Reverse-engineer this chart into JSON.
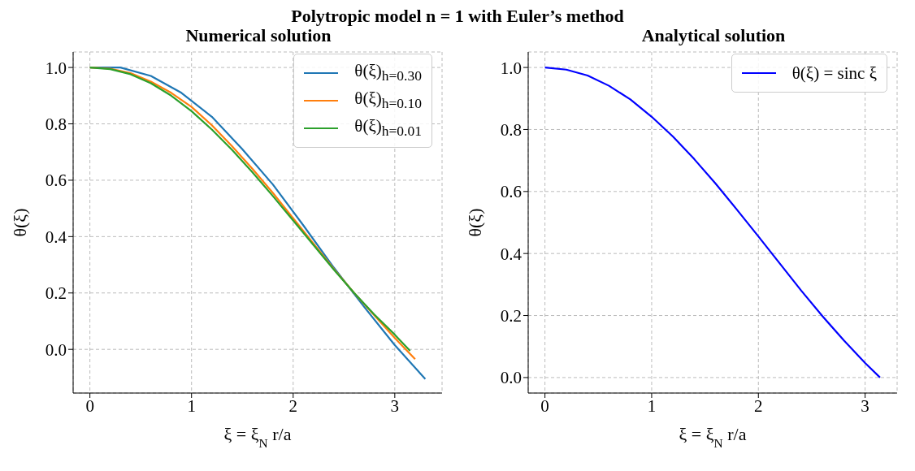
{
  "chart_data": [
    {
      "type": "line",
      "title": "Polytropic model  n = 1  with Euler’s method",
      "subtitle": "Numerical solution",
      "xlabel": "ξ = ξ$_{N}$r/a",
      "ylabel": "θ(ξ)",
      "xlim": [
        -0.165,
        3.465
      ],
      "ylim": [
        -0.155,
        1.055
      ],
      "xticks": [
        0,
        1,
        2,
        3
      ],
      "yticks": [
        {
          "value": 0,
          "label": "0.0"
        },
        {
          "value": 0.2,
          "label": "0.2"
        },
        {
          "value": 0.4,
          "label": "0.4"
        },
        {
          "value": 0.6,
          "label": "0.6"
        },
        {
          "value": 0.8,
          "label": "0.8"
        },
        {
          "value": 1,
          "label": "1.0"
        }
      ],
      "grid": true,
      "legend": "top right",
      "line_style": "solid",
      "series": [
        {
          "name": "θ(ξ)$_{h=0.30}$",
          "color": "#1f77b4",
          "x": [
            0,
            0.3,
            0.6,
            0.9,
            1.2,
            1.5,
            1.8,
            2.1,
            2.4,
            2.7,
            3.0,
            3.3
          ],
          "values": [
            1,
            1,
            0.97,
            0.91,
            0.825,
            0.71,
            0.585,
            0.44,
            0.29,
            0.15,
            0.015,
            -0.105
          ]
        },
        {
          "name": "θ(ξ)$_{h=0.10}$",
          "color": "#ff7f0e",
          "x": [
            0,
            0.2,
            0.4,
            0.6,
            0.8,
            1.0,
            1.2,
            1.4,
            1.6,
            1.8,
            2.0,
            2.2,
            2.4,
            2.6,
            2.8,
            3.0,
            3.2
          ],
          "values": [
            1,
            0.996,
            0.98,
            0.95,
            0.91,
            0.86,
            0.795,
            0.72,
            0.64,
            0.555,
            0.465,
            0.375,
            0.285,
            0.2,
            0.12,
            0.04,
            -0.035
          ]
        },
        {
          "name": "θ(ξ)$_{h=0.01}$",
          "color": "#2ca02c",
          "x": [
            0,
            0.2,
            0.4,
            0.6,
            0.8,
            1.0,
            1.2,
            1.4,
            1.6,
            1.8,
            2.0,
            2.2,
            2.4,
            2.6,
            2.8,
            3.0,
            3.15
          ],
          "values": [
            1,
            0.994,
            0.976,
            0.944,
            0.9,
            0.845,
            0.78,
            0.707,
            0.628,
            0.544,
            0.457,
            0.37,
            0.283,
            0.2,
            0.123,
            0.052,
            -0.005
          ]
        }
      ]
    },
    {
      "type": "line",
      "subtitle": "Analytical solution",
      "xlabel": "ξ = ξ$_{N}$r/a",
      "ylabel": "θ(ξ)",
      "xlim": [
        -0.157,
        3.3
      ],
      "ylim": [
        -0.05,
        1.05
      ],
      "xticks": [
        0,
        1,
        2,
        3
      ],
      "yticks": [
        {
          "value": 0,
          "label": "0.0"
        },
        {
          "value": 0.2,
          "label": "0.2"
        },
        {
          "value": 0.4,
          "label": "0.4"
        },
        {
          "value": 0.6,
          "label": "0.6"
        },
        {
          "value": 0.8,
          "label": "0.8"
        },
        {
          "value": 1,
          "label": "1.0"
        }
      ],
      "grid": true,
      "legend": "top right",
      "line_style": "solid",
      "series": [
        {
          "name": "θ(ξ) = sinc ξ",
          "color": "#0000ff",
          "x": [
            0,
            0.2,
            0.4,
            0.6,
            0.8,
            1.0,
            1.2,
            1.4,
            1.6,
            1.8,
            2.0,
            2.2,
            2.4,
            2.6,
            2.8,
            3.0,
            3.14
          ],
          "values": [
            1,
            0.993,
            0.974,
            0.941,
            0.897,
            0.841,
            0.777,
            0.704,
            0.625,
            0.541,
            0.455,
            0.368,
            0.281,
            0.198,
            0.12,
            0.047,
            0
          ]
        }
      ]
    }
  ]
}
